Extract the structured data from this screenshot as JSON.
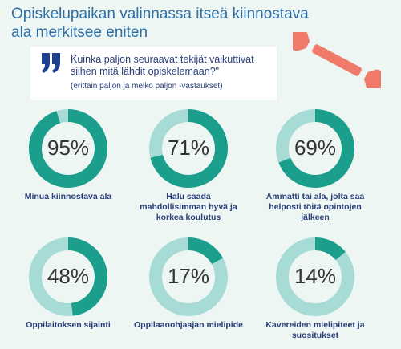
{
  "header": {
    "title": "Opiskelupaikan valinnassa itseä kiinnostava ala merkitsee eniten",
    "question": "Kuinka paljon seuraavat tekijät vaikuttivat siihen mitä lähdit opiskelemaan?\"",
    "note": "(erittäin paljon ja melko paljon -vastaukset)"
  },
  "chart_data": [
    {
      "type": "donut",
      "title": "Minua kiinnostava ala",
      "values": [
        95
      ],
      "value_labels": [
        "95%"
      ],
      "color": "#1b9e8c",
      "track_color": "#a6dcd5"
    },
    {
      "type": "donut",
      "title": "Halu saada mahdollisimman hyvä ja korkea koulutus",
      "values": [
        71
      ],
      "value_labels": [
        "71%"
      ],
      "color": "#1b9e8c",
      "track_color": "#a6dcd5"
    },
    {
      "type": "donut",
      "title": "Ammatti tai ala, jolta saa helposti töitä opintojen jälkeen",
      "values": [
        69
      ],
      "value_labels": [
        "69%"
      ],
      "color": "#1b9e8c",
      "track_color": "#a6dcd5"
    },
    {
      "type": "donut",
      "title": "Oppilaitoksen sijainti",
      "values": [
        48
      ],
      "value_labels": [
        "48%"
      ],
      "color": "#1b9e8c",
      "track_color": "#a6dcd5"
    },
    {
      "type": "donut",
      "title": "Oppilaanohjaajan mielipide",
      "values": [
        17
      ],
      "value_labels": [
        "17%"
      ],
      "color": "#1b9e8c",
      "track_color": "#a6dcd5"
    },
    {
      "type": "donut",
      "title": "Kavereiden mielipiteet ja suositukset",
      "values": [
        14
      ],
      "value_labels": [
        "14%"
      ],
      "color": "#1b9e8c",
      "track_color": "#a6dcd5"
    }
  ]
}
